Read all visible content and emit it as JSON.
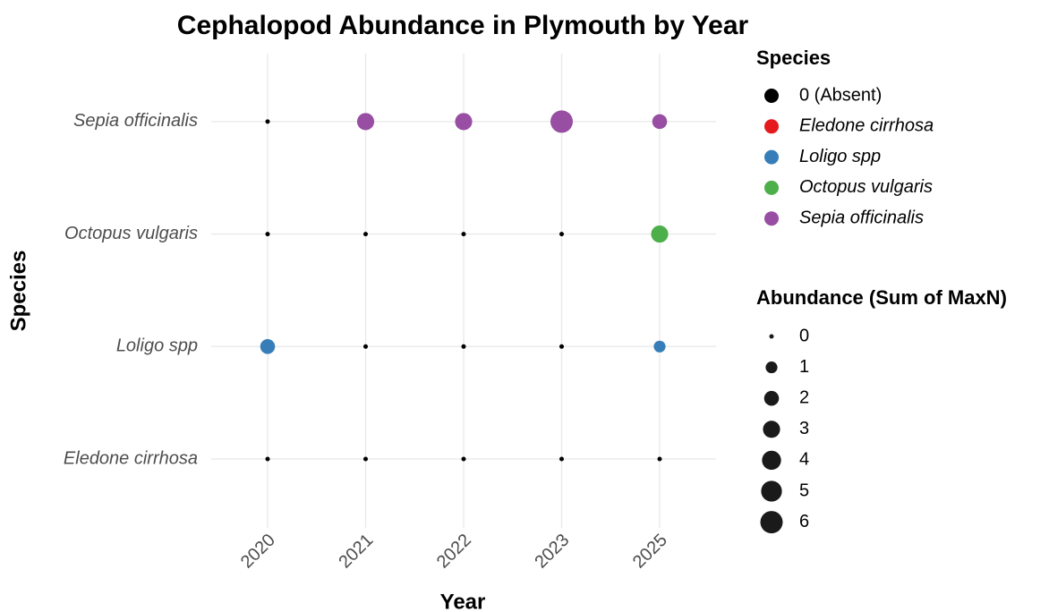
{
  "chart_data": {
    "type": "bubble",
    "title": "Cephalopod Abundance in Plymouth by Year",
    "x_label": "Year",
    "y_label": "Species",
    "categories": [
      "2020",
      "2021",
      "2022",
      "2023",
      "2025"
    ],
    "series": [
      {
        "name": "Eledone cirrhosa",
        "color": "#e41a1c",
        "values": [
          0,
          0,
          0,
          0,
          0
        ]
      },
      {
        "name": "Loligo spp",
        "color": "#377eb8",
        "values": [
          2,
          0,
          0,
          0,
          1
        ]
      },
      {
        "name": "Octopus vulgaris",
        "color": "#4daf4a",
        "values": [
          0,
          0,
          0,
          0,
          3
        ]
      },
      {
        "name": "Sepia officinalis",
        "color": "#984ea3",
        "values": [
          0,
          3,
          3,
          6,
          2
        ]
      }
    ],
    "absent_label": "0 (Absent)",
    "absent_color": "#000000",
    "color_legend_title": "Species",
    "size_legend": {
      "title": "Abundance (Sum of MaxN)",
      "values": [
        0,
        1,
        2,
        3,
        4,
        5,
        6
      ]
    },
    "grid": true
  }
}
